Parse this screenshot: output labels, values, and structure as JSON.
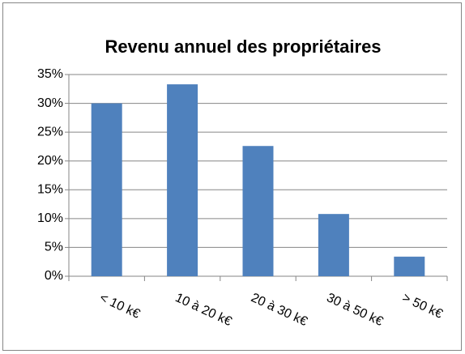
{
  "chart_data": {
    "type": "bar",
    "title": "Revenu annuel des propriétaires",
    "categories": [
      "< 10 k€",
      "10 à 20 k€",
      "20 à 30 k€",
      "30 à 50 k€",
      "> 50 k€"
    ],
    "values": [
      30,
      33.3,
      22.6,
      10.8,
      3.4
    ],
    "color": "#4f81bd",
    "ylim": [
      0,
      35
    ],
    "yticks": [
      {
        "value": 0,
        "label": "0%"
      },
      {
        "value": 5,
        "label": "5%"
      },
      {
        "value": 10,
        "label": "10%"
      },
      {
        "value": 15,
        "label": "15%"
      },
      {
        "value": 20,
        "label": "20%"
      },
      {
        "value": 25,
        "label": "25%"
      },
      {
        "value": 30,
        "label": "30%"
      },
      {
        "value": 35,
        "label": "35%"
      }
    ],
    "grid": true
  }
}
